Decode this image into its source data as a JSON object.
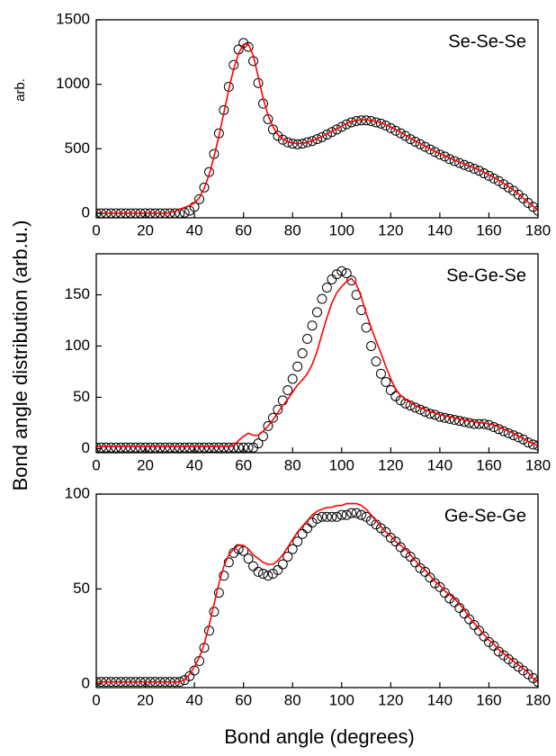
{
  "figure": {
    "xlabel": "Bond angle (degrees)",
    "ylabel": "Bond angle distribution (arb.u.)"
  },
  "chart_data": [
    {
      "type": "line",
      "title": "Se-Se-Se",
      "annotation": "arb.",
      "x": [
        0,
        2,
        4,
        6,
        8,
        10,
        12,
        14,
        16,
        18,
        20,
        22,
        24,
        26,
        28,
        30,
        32,
        34,
        36,
        38,
        40,
        42,
        44,
        46,
        48,
        50,
        52,
        54,
        56,
        58,
        60,
        62,
        64,
        66,
        68,
        70,
        72,
        74,
        76,
        78,
        80,
        82,
        84,
        86,
        88,
        90,
        92,
        94,
        96,
        98,
        100,
        102,
        104,
        106,
        108,
        110,
        112,
        114,
        116,
        118,
        120,
        122,
        124,
        126,
        128,
        130,
        132,
        134,
        136,
        138,
        140,
        142,
        144,
        146,
        148,
        150,
        152,
        154,
        156,
        158,
        160,
        162,
        164,
        166,
        168,
        170,
        172,
        174,
        176,
        178,
        180
      ],
      "series": [
        {
          "style": "open-circle",
          "color": "#000000",
          "values": [
            0,
            0,
            0,
            0,
            0,
            0,
            0,
            0,
            0,
            0,
            0,
            0,
            0,
            0,
            0,
            0,
            0,
            0,
            5,
            20,
            50,
            110,
            200,
            320,
            460,
            620,
            800,
            980,
            1150,
            1270,
            1320,
            1290,
            1180,
            1010,
            850,
            730,
            650,
            600,
            570,
            550,
            540,
            535,
            540,
            550,
            560,
            575,
            590,
            610,
            630,
            650,
            670,
            690,
            705,
            715,
            720,
            720,
            715,
            705,
            695,
            680,
            660,
            640,
            620,
            600,
            575,
            555,
            535,
            515,
            495,
            475,
            455,
            440,
            420,
            405,
            390,
            375,
            360,
            345,
            330,
            310,
            290,
            270,
            250,
            225,
            200,
            175,
            145,
            115,
            80,
            50,
            20
          ]
        },
        {
          "style": "line",
          "color": "#ff0000",
          "values": [
            0,
            0,
            0,
            0,
            0,
            0,
            0,
            0,
            0,
            0,
            0,
            0,
            0,
            0,
            0,
            5,
            15,
            30,
            45,
            60,
            80,
            120,
            195,
            300,
            440,
            600,
            780,
            960,
            1120,
            1240,
            1310,
            1310,
            1220,
            1060,
            890,
            760,
            670,
            610,
            575,
            555,
            545,
            540,
            542,
            550,
            562,
            578,
            595,
            615,
            635,
            655,
            675,
            695,
            710,
            720,
            725,
            725,
            720,
            712,
            700,
            685,
            668,
            648,
            628,
            605,
            582,
            560,
            540,
            520,
            500,
            480,
            462,
            445,
            428,
            412,
            397,
            382,
            367,
            352,
            336,
            318,
            298,
            278,
            256,
            232,
            206,
            180,
            150,
            118,
            85,
            55,
            25
          ]
        }
      ],
      "xlim": [
        0,
        180
      ],
      "xticks": [
        0,
        20,
        40,
        60,
        80,
        100,
        120,
        140,
        160,
        180
      ],
      "ylim": [
        -35,
        1500
      ],
      "yticks": [
        0,
        500,
        1000,
        1500
      ],
      "grid": false
    },
    {
      "type": "line",
      "title": "Se-Ge-Se",
      "x": [
        0,
        2,
        4,
        6,
        8,
        10,
        12,
        14,
        16,
        18,
        20,
        22,
        24,
        26,
        28,
        30,
        32,
        34,
        36,
        38,
        40,
        42,
        44,
        46,
        48,
        50,
        52,
        54,
        56,
        58,
        60,
        62,
        64,
        66,
        68,
        70,
        72,
        74,
        76,
        78,
        80,
        82,
        84,
        86,
        88,
        90,
        92,
        94,
        96,
        98,
        100,
        102,
        104,
        106,
        108,
        110,
        112,
        114,
        116,
        118,
        120,
        122,
        124,
        126,
        128,
        130,
        132,
        134,
        136,
        138,
        140,
        142,
        144,
        146,
        148,
        150,
        152,
        154,
        156,
        158,
        160,
        162,
        164,
        166,
        168,
        170,
        172,
        174,
        176,
        178,
        180
      ],
      "series": [
        {
          "style": "open-circle",
          "color": "#000000",
          "values": [
            1,
            1,
            1,
            1,
            1,
            1,
            1,
            1,
            1,
            1,
            1,
            1,
            1,
            1,
            1,
            1,
            1,
            1,
            1,
            1,
            1,
            1,
            1,
            1,
            1,
            1,
            1,
            1,
            1,
            1,
            1,
            1,
            1,
            5,
            12,
            22,
            30,
            38,
            47,
            57,
            68,
            80,
            93,
            107,
            120,
            133,
            146,
            157,
            165,
            170,
            173,
            171,
            164,
            150,
            135,
            118,
            100,
            85,
            73,
            65,
            57,
            51,
            47,
            44,
            42,
            40,
            38,
            36,
            34,
            33,
            31,
            30,
            29,
            28,
            27,
            26,
            25,
            24,
            24,
            24,
            23,
            21,
            19,
            17,
            15,
            13,
            11,
            9,
            6,
            4,
            3
          ]
        },
        {
          "style": "line",
          "color": "#ff0000",
          "values": [
            2,
            2,
            2,
            2,
            2,
            2,
            2,
            2,
            2,
            2,
            2,
            2,
            2,
            2,
            2,
            2,
            2,
            2,
            2,
            2,
            2,
            2,
            2,
            2,
            2,
            2,
            2,
            2,
            3,
            8,
            12,
            15,
            13,
            13,
            17,
            22,
            28,
            35,
            42,
            48,
            55,
            62,
            67,
            73,
            82,
            95,
            112,
            128,
            142,
            152,
            158,
            163,
            166,
            160,
            148,
            132,
            118,
            105,
            93,
            80,
            68,
            58,
            52,
            48,
            45,
            42,
            40,
            38,
            36,
            35,
            33,
            32,
            31,
            30,
            29,
            28,
            27,
            26,
            25,
            25,
            24,
            23,
            21,
            19,
            17,
            15,
            12,
            10,
            7,
            5,
            3
          ]
        }
      ],
      "xlim": [
        0,
        180
      ],
      "xticks": [
        0,
        20,
        40,
        60,
        80,
        100,
        120,
        140,
        160,
        180
      ],
      "ylim": [
        -4,
        190
      ],
      "yticks": [
        0,
        50,
        100,
        150
      ],
      "grid": false
    },
    {
      "type": "line",
      "title": "Ge-Se-Ge",
      "x": [
        0,
        2,
        4,
        6,
        8,
        10,
        12,
        14,
        16,
        18,
        20,
        22,
        24,
        26,
        28,
        30,
        32,
        34,
        36,
        38,
        40,
        42,
        44,
        46,
        48,
        50,
        52,
        54,
        56,
        58,
        60,
        62,
        64,
        66,
        68,
        70,
        72,
        74,
        76,
        78,
        80,
        82,
        84,
        86,
        88,
        90,
        92,
        94,
        96,
        98,
        100,
        102,
        104,
        106,
        108,
        110,
        112,
        114,
        116,
        118,
        120,
        122,
        124,
        126,
        128,
        130,
        132,
        134,
        136,
        138,
        140,
        142,
        144,
        146,
        148,
        150,
        152,
        154,
        156,
        158,
        160,
        162,
        164,
        166,
        168,
        170,
        172,
        174,
        176,
        178,
        180
      ],
      "series": [
        {
          "style": "open-circle",
          "color": "#000000",
          "values": [
            1,
            1,
            1,
            1,
            1,
            1,
            1,
            1,
            1,
            1,
            1,
            1,
            1,
            1,
            1,
            1,
            1,
            1,
            2,
            4,
            7,
            12,
            19,
            28,
            38,
            48,
            57,
            64,
            69,
            71,
            70,
            66,
            62,
            59,
            58,
            57,
            58,
            60,
            63,
            67,
            71,
            75,
            79,
            82,
            85,
            87,
            88,
            88,
            88,
            88,
            89,
            89,
            90,
            90,
            89,
            88,
            86,
            84,
            82,
            80,
            77,
            75,
            72,
            69,
            67,
            64,
            61,
            59,
            56,
            53,
            51,
            48,
            45,
            43,
            40,
            37,
            34,
            31,
            28,
            25,
            22,
            20,
            17,
            15,
            13,
            11,
            9,
            7,
            5,
            3,
            1
          ]
        },
        {
          "style": "line",
          "color": "#ff0000",
          "values": [
            1,
            1,
            1,
            1,
            1,
            1,
            1,
            1,
            1,
            1,
            1,
            1,
            1,
            1,
            1,
            1,
            1,
            1,
            2,
            5,
            9,
            14,
            21,
            31,
            42,
            53,
            62,
            68,
            71,
            73,
            73,
            71,
            68,
            66,
            64,
            63,
            63,
            65,
            68,
            72,
            76,
            80,
            83,
            86,
            89,
            91,
            92,
            93,
            93,
            94,
            94,
            95,
            95,
            95,
            94,
            92,
            89,
            86,
            83,
            80,
            78,
            75,
            73,
            71,
            68,
            65,
            62,
            60,
            57,
            54,
            52,
            49,
            47,
            45,
            42,
            39,
            35,
            32,
            29,
            26,
            23,
            21,
            18,
            16,
            14,
            12,
            10,
            8,
            6,
            3,
            1
          ]
        }
      ],
      "xlim": [
        0,
        180
      ],
      "xticks": [
        0,
        20,
        40,
        60,
        80,
        100,
        120,
        140,
        160,
        180
      ],
      "ylim": [
        -2,
        100
      ],
      "yticks": [
        0,
        50,
        100
      ],
      "grid": false
    }
  ]
}
